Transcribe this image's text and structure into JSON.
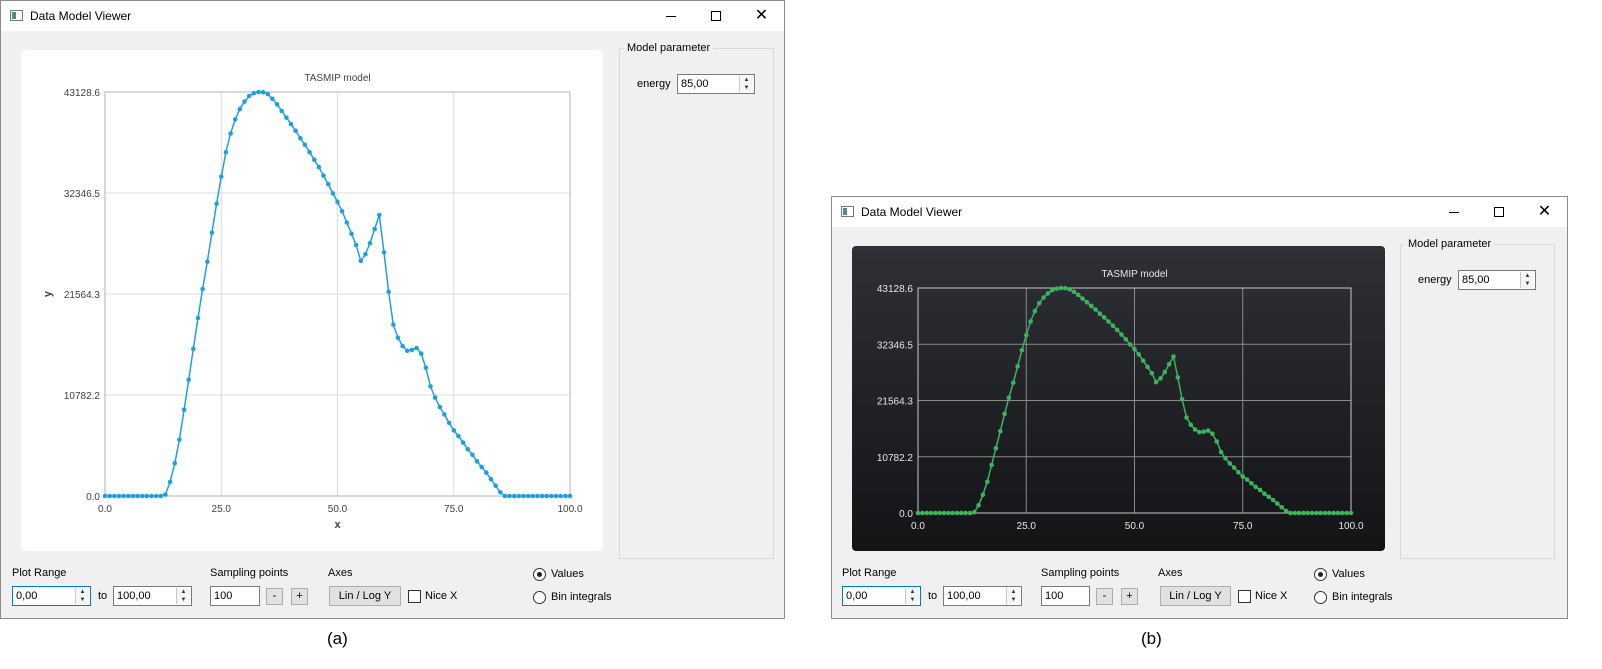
{
  "caption_a": "(a)",
  "caption_b": "(b)",
  "window": {
    "title": "Data Model Viewer",
    "minimize_icon": "minimize-icon",
    "maximize_icon": "maximize-icon",
    "close_icon": "close-icon",
    "close_glyph": "✕"
  },
  "model_parameter": {
    "group_title": "Model parameter",
    "energy_label": "energy",
    "energy_value": "85,00"
  },
  "controls": {
    "plot_range_label": "Plot Range",
    "range_from": "0,00",
    "to_label": "to",
    "range_to": "100,00",
    "sampling_label": "Sampling points",
    "sampling_value": "100",
    "minus_label": "-",
    "plus_label": "+",
    "axes_label": "Axes",
    "lin_log_label": "Lin / Log Y",
    "nice_x_label": "Nice X",
    "nice_x_checked": false,
    "values_label": "Values",
    "bin_integrals_label": "Bin integrals",
    "selected_mode": "Values"
  },
  "chart_data": [
    {
      "type": "line",
      "theme": "light",
      "title": "TASMIP model",
      "xlabel": "x",
      "ylabel": "y",
      "xlim": [
        0,
        100
      ],
      "ylim": [
        0,
        43128.6
      ],
      "xticks": [
        "0.0",
        "25.0",
        "50.0",
        "75.0",
        "100.0"
      ],
      "yticks": [
        "0.0",
        "10782.2",
        "21564.3",
        "32346.5",
        "43128.6"
      ],
      "grid": true,
      "color": "#209fdf",
      "x": [
        0,
        1,
        2,
        3,
        4,
        5,
        6,
        7,
        8,
        9,
        10,
        11,
        12,
        13,
        14,
        15,
        16,
        17,
        18,
        19,
        20,
        21,
        22,
        23,
        24,
        25,
        26,
        27,
        28,
        29,
        30,
        31,
        32,
        33,
        34,
        35,
        36,
        37,
        38,
        39,
        40,
        41,
        42,
        43,
        44,
        45,
        46,
        47,
        48,
        49,
        50,
        51,
        52,
        53,
        54,
        55,
        56,
        57,
        58,
        59,
        60,
        61,
        62,
        63,
        64,
        65,
        66,
        67,
        68,
        69,
        70,
        71,
        72,
        73,
        74,
        75,
        76,
        77,
        78,
        79,
        80,
        81,
        82,
        83,
        84,
        85,
        86,
        87,
        88,
        89,
        90,
        91,
        92,
        93,
        94,
        95,
        96,
        97,
        98,
        99,
        100
      ],
      "y": [
        0,
        0,
        0,
        0,
        0,
        0,
        0,
        0,
        0,
        0,
        0,
        0,
        0,
        150,
        1500,
        3500,
        6000,
        9200,
        12400,
        15700,
        19000,
        22100,
        25000,
        28100,
        31200,
        34100,
        36700,
        38700,
        40200,
        41300,
        42100,
        42700,
        43000,
        43128.6,
        43100,
        42900,
        42400,
        41800,
        41100,
        40400,
        39700,
        39000,
        38200,
        37500,
        36700,
        35900,
        35100,
        34200,
        33300,
        32300,
        31400,
        30400,
        29200,
        28000,
        26800,
        25100,
        25800,
        27000,
        28500,
        30000,
        26000,
        21800,
        18300,
        16900,
        16000,
        15500,
        15600,
        15800,
        15200,
        13700,
        11700,
        10500,
        9500,
        8700,
        7800,
        7000,
        6400,
        5700,
        5000,
        4400,
        3700,
        3100,
        2500,
        1800,
        1100,
        400,
        0,
        0,
        0,
        0,
        0,
        0,
        0,
        0,
        0,
        0,
        0,
        0,
        0,
        0,
        0
      ]
    },
    {
      "type": "line",
      "theme": "dark",
      "title": "TASMIP model",
      "xlim": [
        0,
        100
      ],
      "ylim": [
        0,
        43128.6
      ],
      "xticks": [
        "0.0",
        "25.0",
        "50.0",
        "75.0",
        "100.0"
      ],
      "yticks": [
        "0.0",
        "10782.2",
        "21564.3",
        "32346.5",
        "43128.6"
      ],
      "grid": true,
      "color": "#3cb45e",
      "x": [
        0,
        1,
        2,
        3,
        4,
        5,
        6,
        7,
        8,
        9,
        10,
        11,
        12,
        13,
        14,
        15,
        16,
        17,
        18,
        19,
        20,
        21,
        22,
        23,
        24,
        25,
        26,
        27,
        28,
        29,
        30,
        31,
        32,
        33,
        34,
        35,
        36,
        37,
        38,
        39,
        40,
        41,
        42,
        43,
        44,
        45,
        46,
        47,
        48,
        49,
        50,
        51,
        52,
        53,
        54,
        55,
        56,
        57,
        58,
        59,
        60,
        61,
        62,
        63,
        64,
        65,
        66,
        67,
        68,
        69,
        70,
        71,
        72,
        73,
        74,
        75,
        76,
        77,
        78,
        79,
        80,
        81,
        82,
        83,
        84,
        85,
        86,
        87,
        88,
        89,
        90,
        91,
        92,
        93,
        94,
        95,
        96,
        97,
        98,
        99,
        100
      ],
      "y": [
        0,
        0,
        0,
        0,
        0,
        0,
        0,
        0,
        0,
        0,
        0,
        0,
        0,
        150,
        1500,
        3500,
        6000,
        9200,
        12400,
        15700,
        19000,
        22100,
        25000,
        28100,
        31200,
        34100,
        36700,
        38700,
        40200,
        41300,
        42100,
        42700,
        43000,
        43128.6,
        43100,
        42900,
        42400,
        41800,
        41100,
        40400,
        39700,
        39000,
        38200,
        37500,
        36700,
        35900,
        35100,
        34200,
        33300,
        32300,
        31400,
        30400,
        29200,
        28000,
        26800,
        25100,
        25800,
        27000,
        28500,
        30000,
        26000,
        21800,
        18300,
        16900,
        16000,
        15500,
        15600,
        15800,
        15200,
        13700,
        11700,
        10500,
        9500,
        8700,
        7800,
        7000,
        6400,
        5700,
        5000,
        4400,
        3700,
        3100,
        2500,
        1800,
        1100,
        400,
        0,
        0,
        0,
        0,
        0,
        0,
        0,
        0,
        0,
        0,
        0,
        0,
        0,
        0,
        0
      ]
    }
  ]
}
